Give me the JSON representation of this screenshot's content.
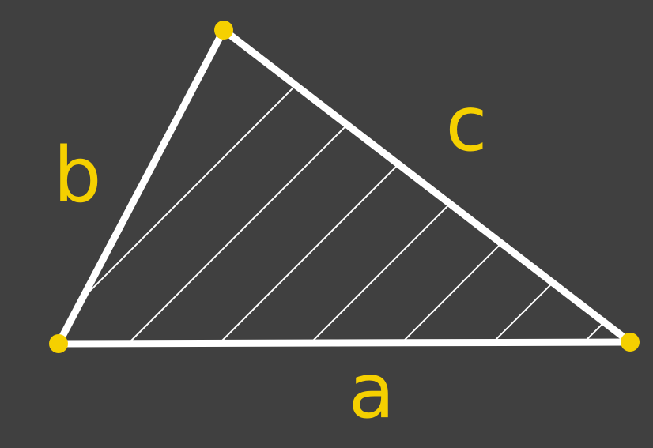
{
  "colors": {
    "background": "#404040",
    "stroke": "#ffffff",
    "accent": "#f5d000"
  },
  "labels": {
    "a": "a",
    "b": "b",
    "c": "c"
  }
}
